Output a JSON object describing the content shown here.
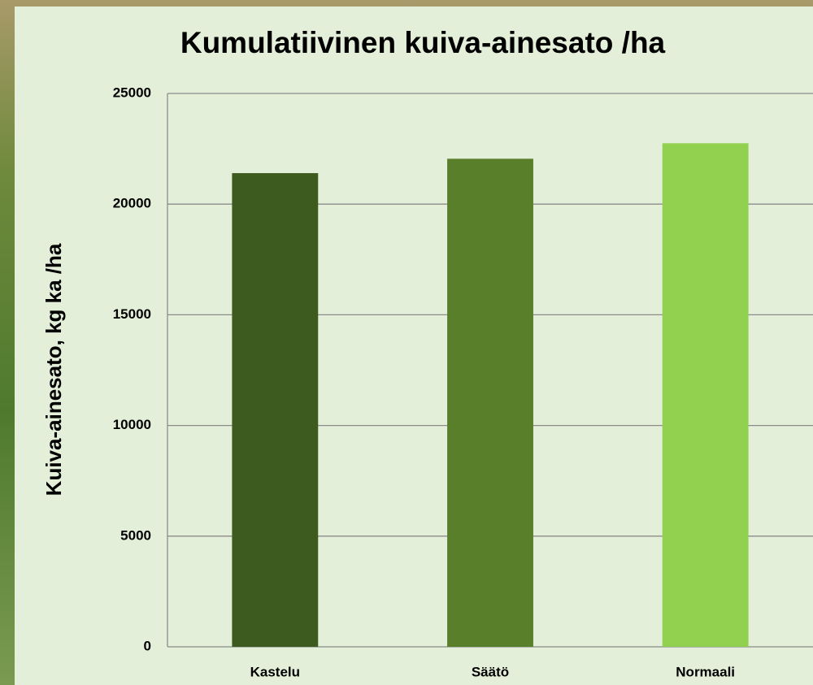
{
  "chart_data": {
    "type": "bar",
    "title": "Kumulatiivinen kuiva-ainesato /ha",
    "y_label": "Kuiva-ainesato, kg ka /ha",
    "categories": [
      "Kastelu",
      "Säätö",
      "Normaali"
    ],
    "values": [
      21400,
      22050,
      22750
    ],
    "colors": [
      "#3d5a1f",
      "#5a7f2b",
      "#92d050"
    ],
    "ylim": [
      0,
      25000
    ],
    "yticks": [
      0,
      5000,
      10000,
      15000,
      20000,
      25000
    ],
    "grid": true
  }
}
